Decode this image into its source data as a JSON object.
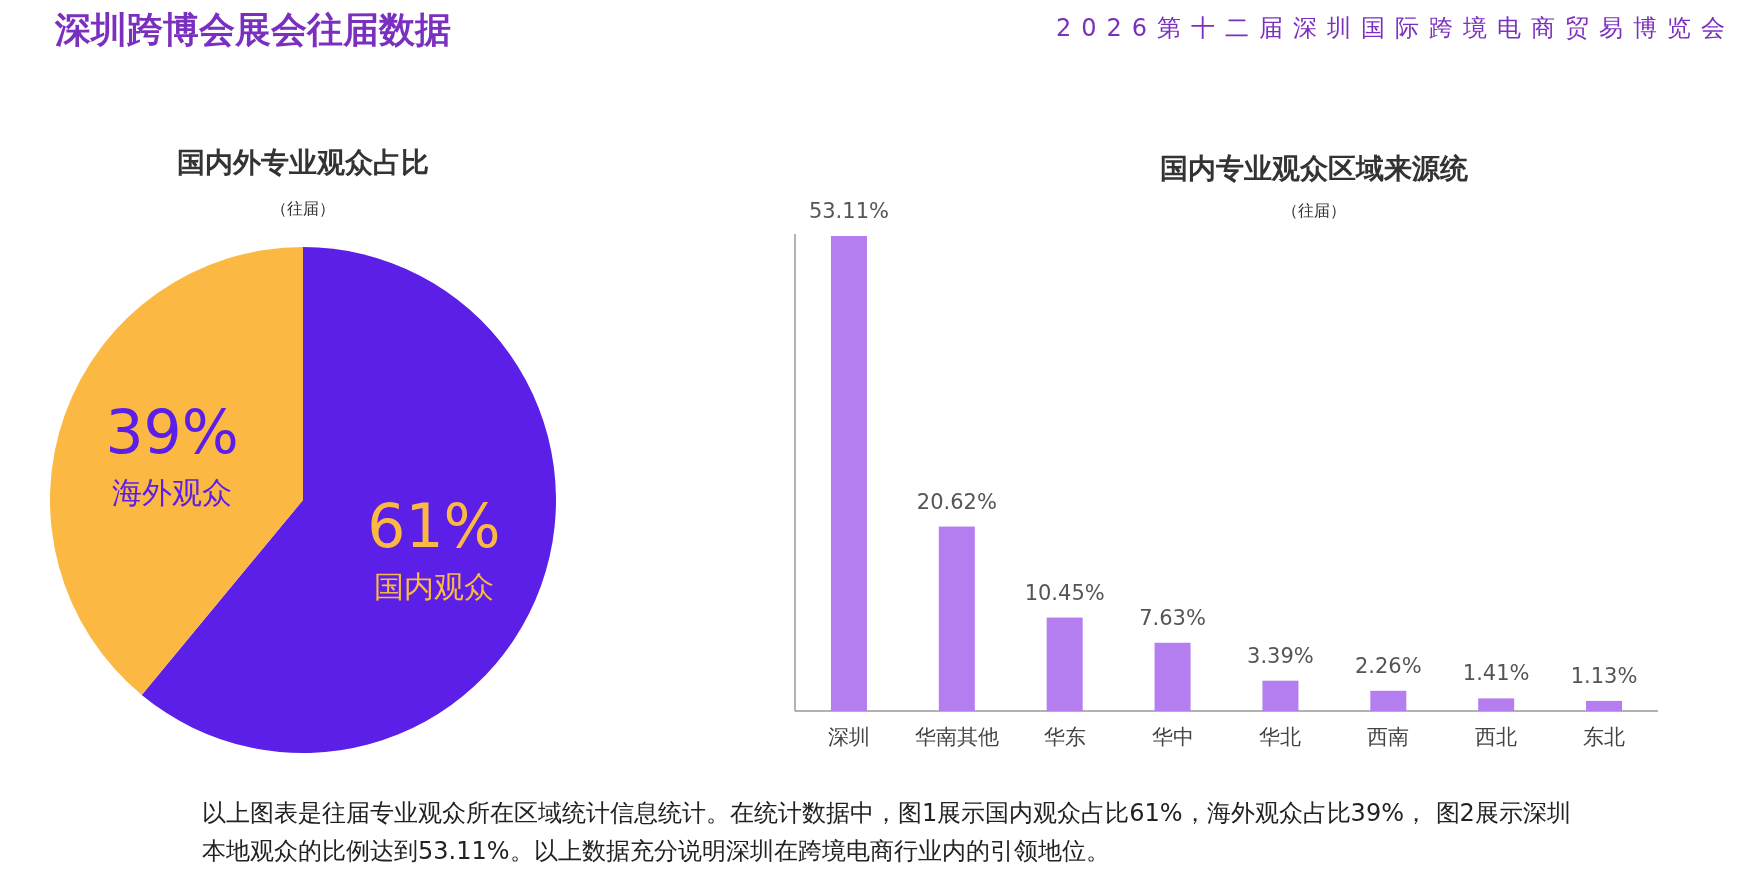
{
  "chart_data": [
    {
      "type": "other",
      "title": "深圳跨博会展会往届数据",
      "subtitle": "2026第十二届深圳国际跨境电商贸易博览会",
      "annotations": [
        "以上图表是往届专业观众所在区域统计信息统计。在统计数据中，图1展示国内观众占比61%，海外观众占比39%， 图2展示深圳本地观众的比例达到53.11%。以上数据充分说明深圳在跨境电商行业内的引领地位。"
      ]
    },
    {
      "type": "pie",
      "title": "国内外专业观众占比",
      "subtitle": "（往届）",
      "categories": [
        "国内观众",
        "海外观众"
      ],
      "values": [
        61,
        39
      ],
      "colors": [
        "#5b1fe8",
        "#fbb843"
      ],
      "value_labels": [
        "61%",
        "39%"
      ]
    },
    {
      "type": "bar",
      "title": "国内专业观众区域来源统",
      "subtitle": "（往届）",
      "categories": [
        "深圳",
        "华南其他",
        "华东",
        "华中",
        "华北",
        "西南",
        "西北",
        "东北"
      ],
      "values": [
        53.11,
        20.62,
        10.45,
        7.63,
        3.39,
        2.26,
        1.41,
        1.13
      ],
      "color": "#b47ef0",
      "value_labels": [
        "53.11%",
        "20.62%",
        "10.45%",
        "7.63%",
        "3.39%",
        "2.26%",
        "1.41%",
        "1.13%"
      ]
    }
  ]
}
